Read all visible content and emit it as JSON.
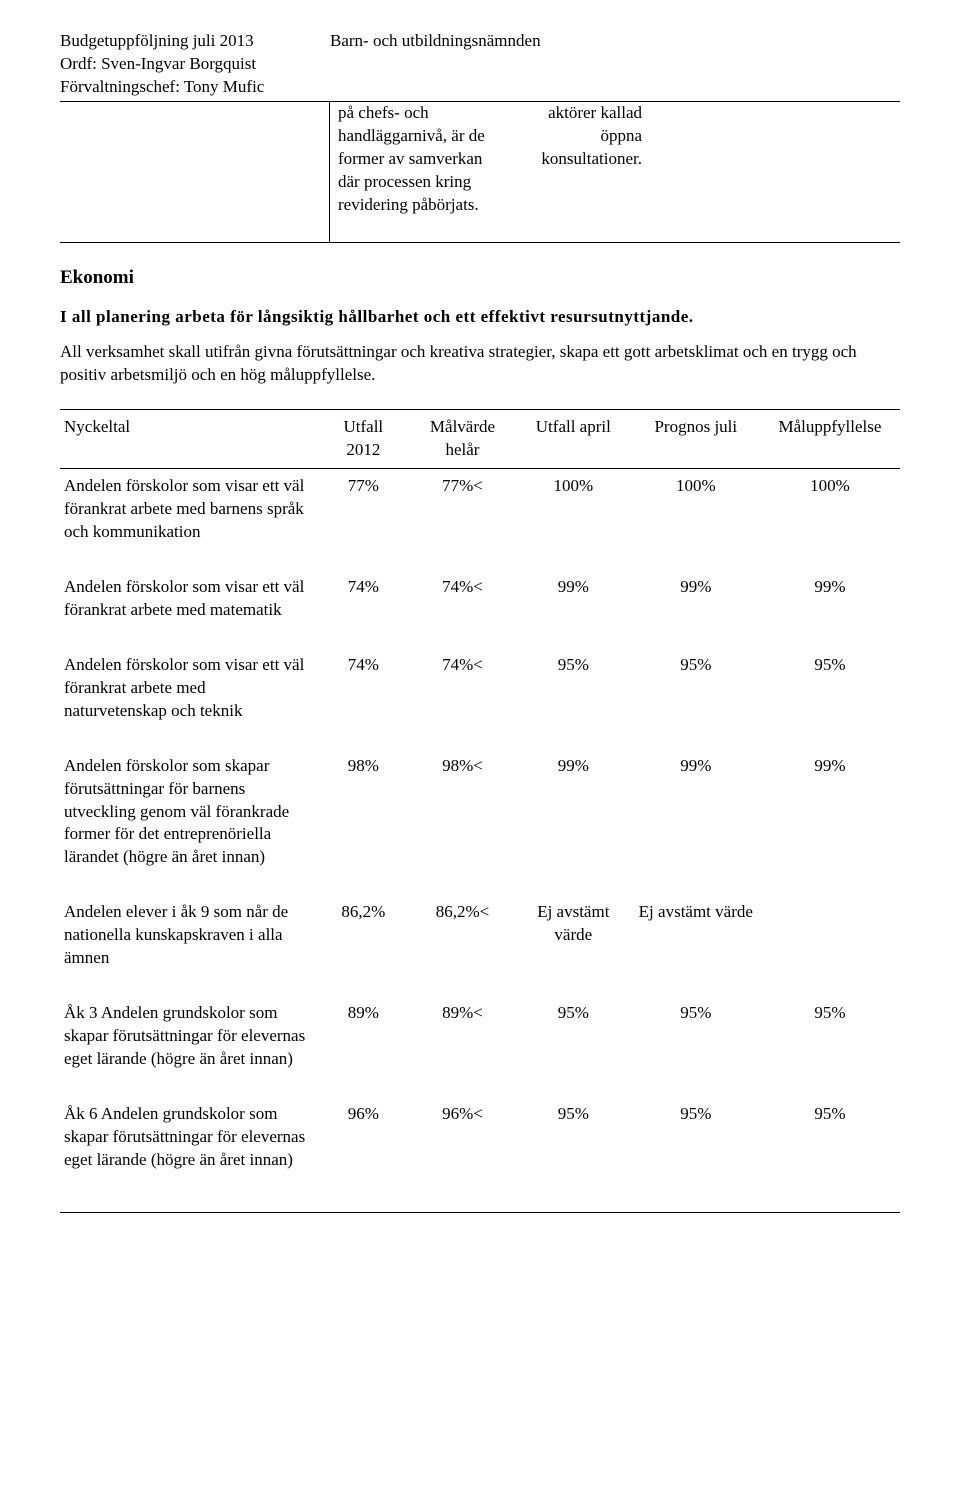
{
  "header": {
    "title_line1": "Budgetuppföljning juli 2013",
    "title_line2": "Ordf: Sven-Ingvar Borgquist",
    "title_line3": "Förvaltningschef: Tony Mufic",
    "right_title": "Barn- och utbildningsnämnden"
  },
  "three_col": {
    "mid": "på chefs- och handläggarnivå, är de former av samverkan där processen kring revidering påbörjats.",
    "right": "aktörer kallad öppna konsultationer."
  },
  "section": {
    "title": "Ekonomi",
    "subheading": "I all planering arbeta för långsiktig hållbarhet och ett effektivt resursutnyttjande.",
    "body": "All verksamhet skall utifrån givna förutsättningar och kreativa strategier, skapa ett gott arbetsklimat och en trygg och positiv arbetsmiljö och en hög måluppfyllelse."
  },
  "table": {
    "headers": {
      "nyckeltal": "Nyckeltal",
      "utfall2012_1": "Utfall",
      "utfall2012_2": "2012",
      "malvarde_1": "Målvärde",
      "malvarde_2": "helår",
      "utfallapril": "Utfall april",
      "prognos": "Prognos juli",
      "maluppf": "Måluppfyllelse"
    },
    "rows": [
      {
        "label": "Andelen förskolor som visar ett väl förankrat arbete med barnens språk och kommunikation",
        "utfall2012": "77%",
        "malvarde": "77%<",
        "utfallapril": "100%",
        "prognos": "100%",
        "maluppf": "100%"
      },
      {
        "label": "Andelen förskolor som visar ett väl förankrat arbete med matematik",
        "utfall2012": "74%",
        "malvarde": "74%<",
        "utfallapril": "99%",
        "prognos": "99%",
        "maluppf": "99%"
      },
      {
        "label": "Andelen förskolor som visar ett väl förankrat arbete med naturvetenskap och teknik",
        "utfall2012": "74%",
        "malvarde": "74%<",
        "utfallapril": "95%",
        "prognos": "95%",
        "maluppf": "95%"
      },
      {
        "label": "Andelen förskolor som skapar förutsättningar för barnens utveckling genom väl förankrade former för det entreprenöriella lärandet (högre än året innan)",
        "utfall2012": "98%",
        "malvarde": "98%<",
        "utfallapril": "99%",
        "prognos": "99%",
        "maluppf": "99%"
      },
      {
        "label": "Andelen elever i åk 9 som når de nationella kunskapskraven i alla ämnen",
        "utfall2012": "86,2%",
        "malvarde": "86,2%<",
        "utfallapril": "Ej avstämt värde",
        "prognos": "Ej avstämt värde",
        "maluppf": ""
      },
      {
        "label": "Åk 3 Andelen grundskolor som skapar förutsättningar för elevernas eget lärande (högre än året innan)",
        "utfall2012": "89%",
        "malvarde": "89%<",
        "utfallapril": "95%",
        "prognos": "95%",
        "maluppf": "95%"
      },
      {
        "label": "Åk 6 Andelen grundskolor som skapar förutsättningar för elevernas eget lärande (högre än året innan)",
        "utfall2012": "96%",
        "malvarde": "96%<",
        "utfallapril": "95%",
        "prognos": "95%",
        "maluppf": "95%"
      }
    ]
  }
}
